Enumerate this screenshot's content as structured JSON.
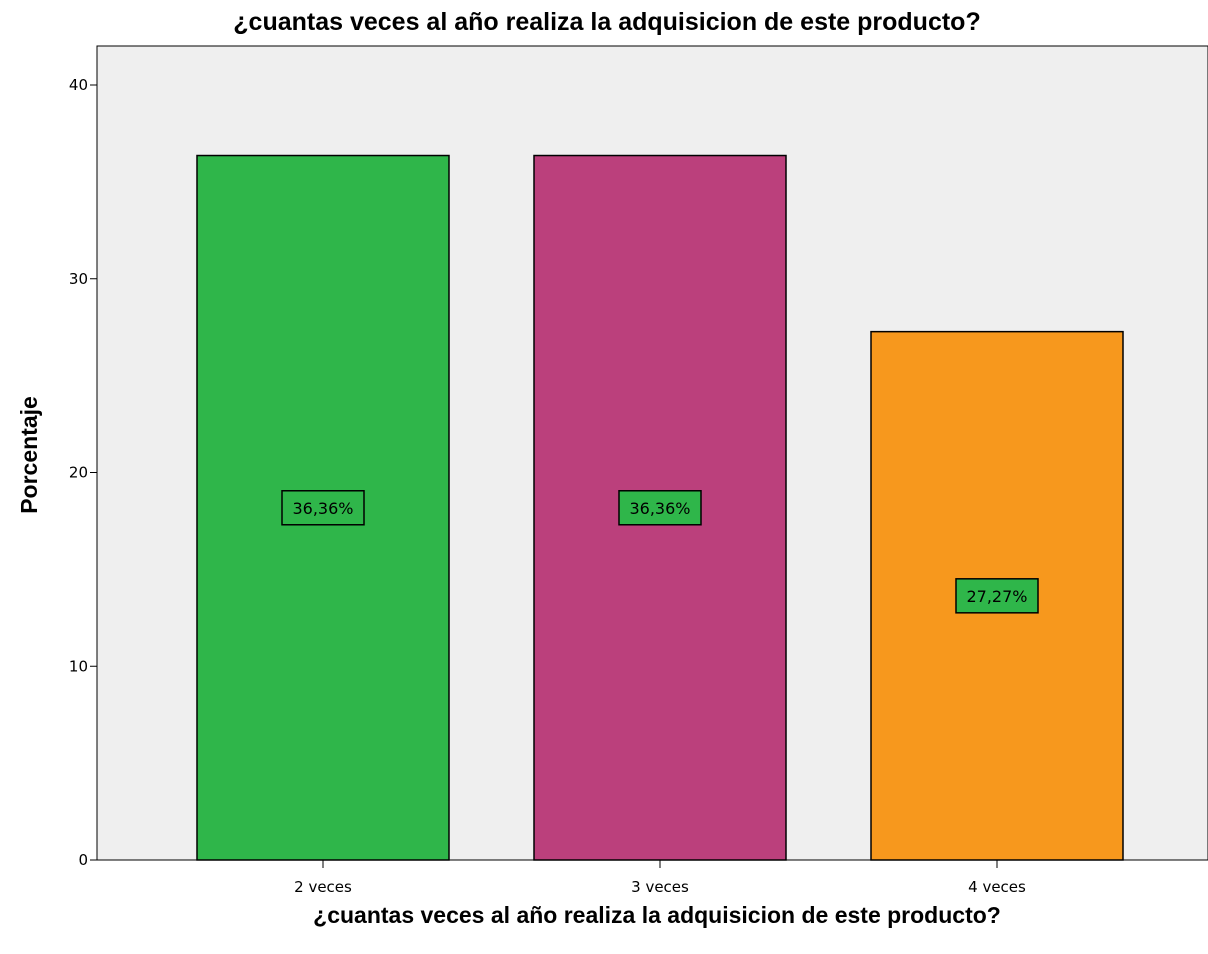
{
  "chart_data": {
    "type": "bar",
    "title": "¿cuantas veces al año realiza la adquisicion de este producto?",
    "xlabel": "¿cuantas veces al año realiza la adquisicion de este producto?",
    "ylabel": "Porcentaje",
    "categories": [
      "2 veces",
      "3 veces",
      "4 veces"
    ],
    "values": [
      36.36,
      36.36,
      27.27
    ],
    "data_labels": [
      "36,36%",
      "36,36%",
      "27,27%"
    ],
    "ylim": [
      0,
      42
    ],
    "yticks": [
      0,
      10,
      20,
      30,
      40
    ],
    "grid": false,
    "legend": "none",
    "colors": {
      "bars": [
        "#2fb64a",
        "#bb407c",
        "#f7981d"
      ],
      "label_box": "#2fb64a",
      "plot_background": "#efefef",
      "border": "#000000"
    }
  }
}
